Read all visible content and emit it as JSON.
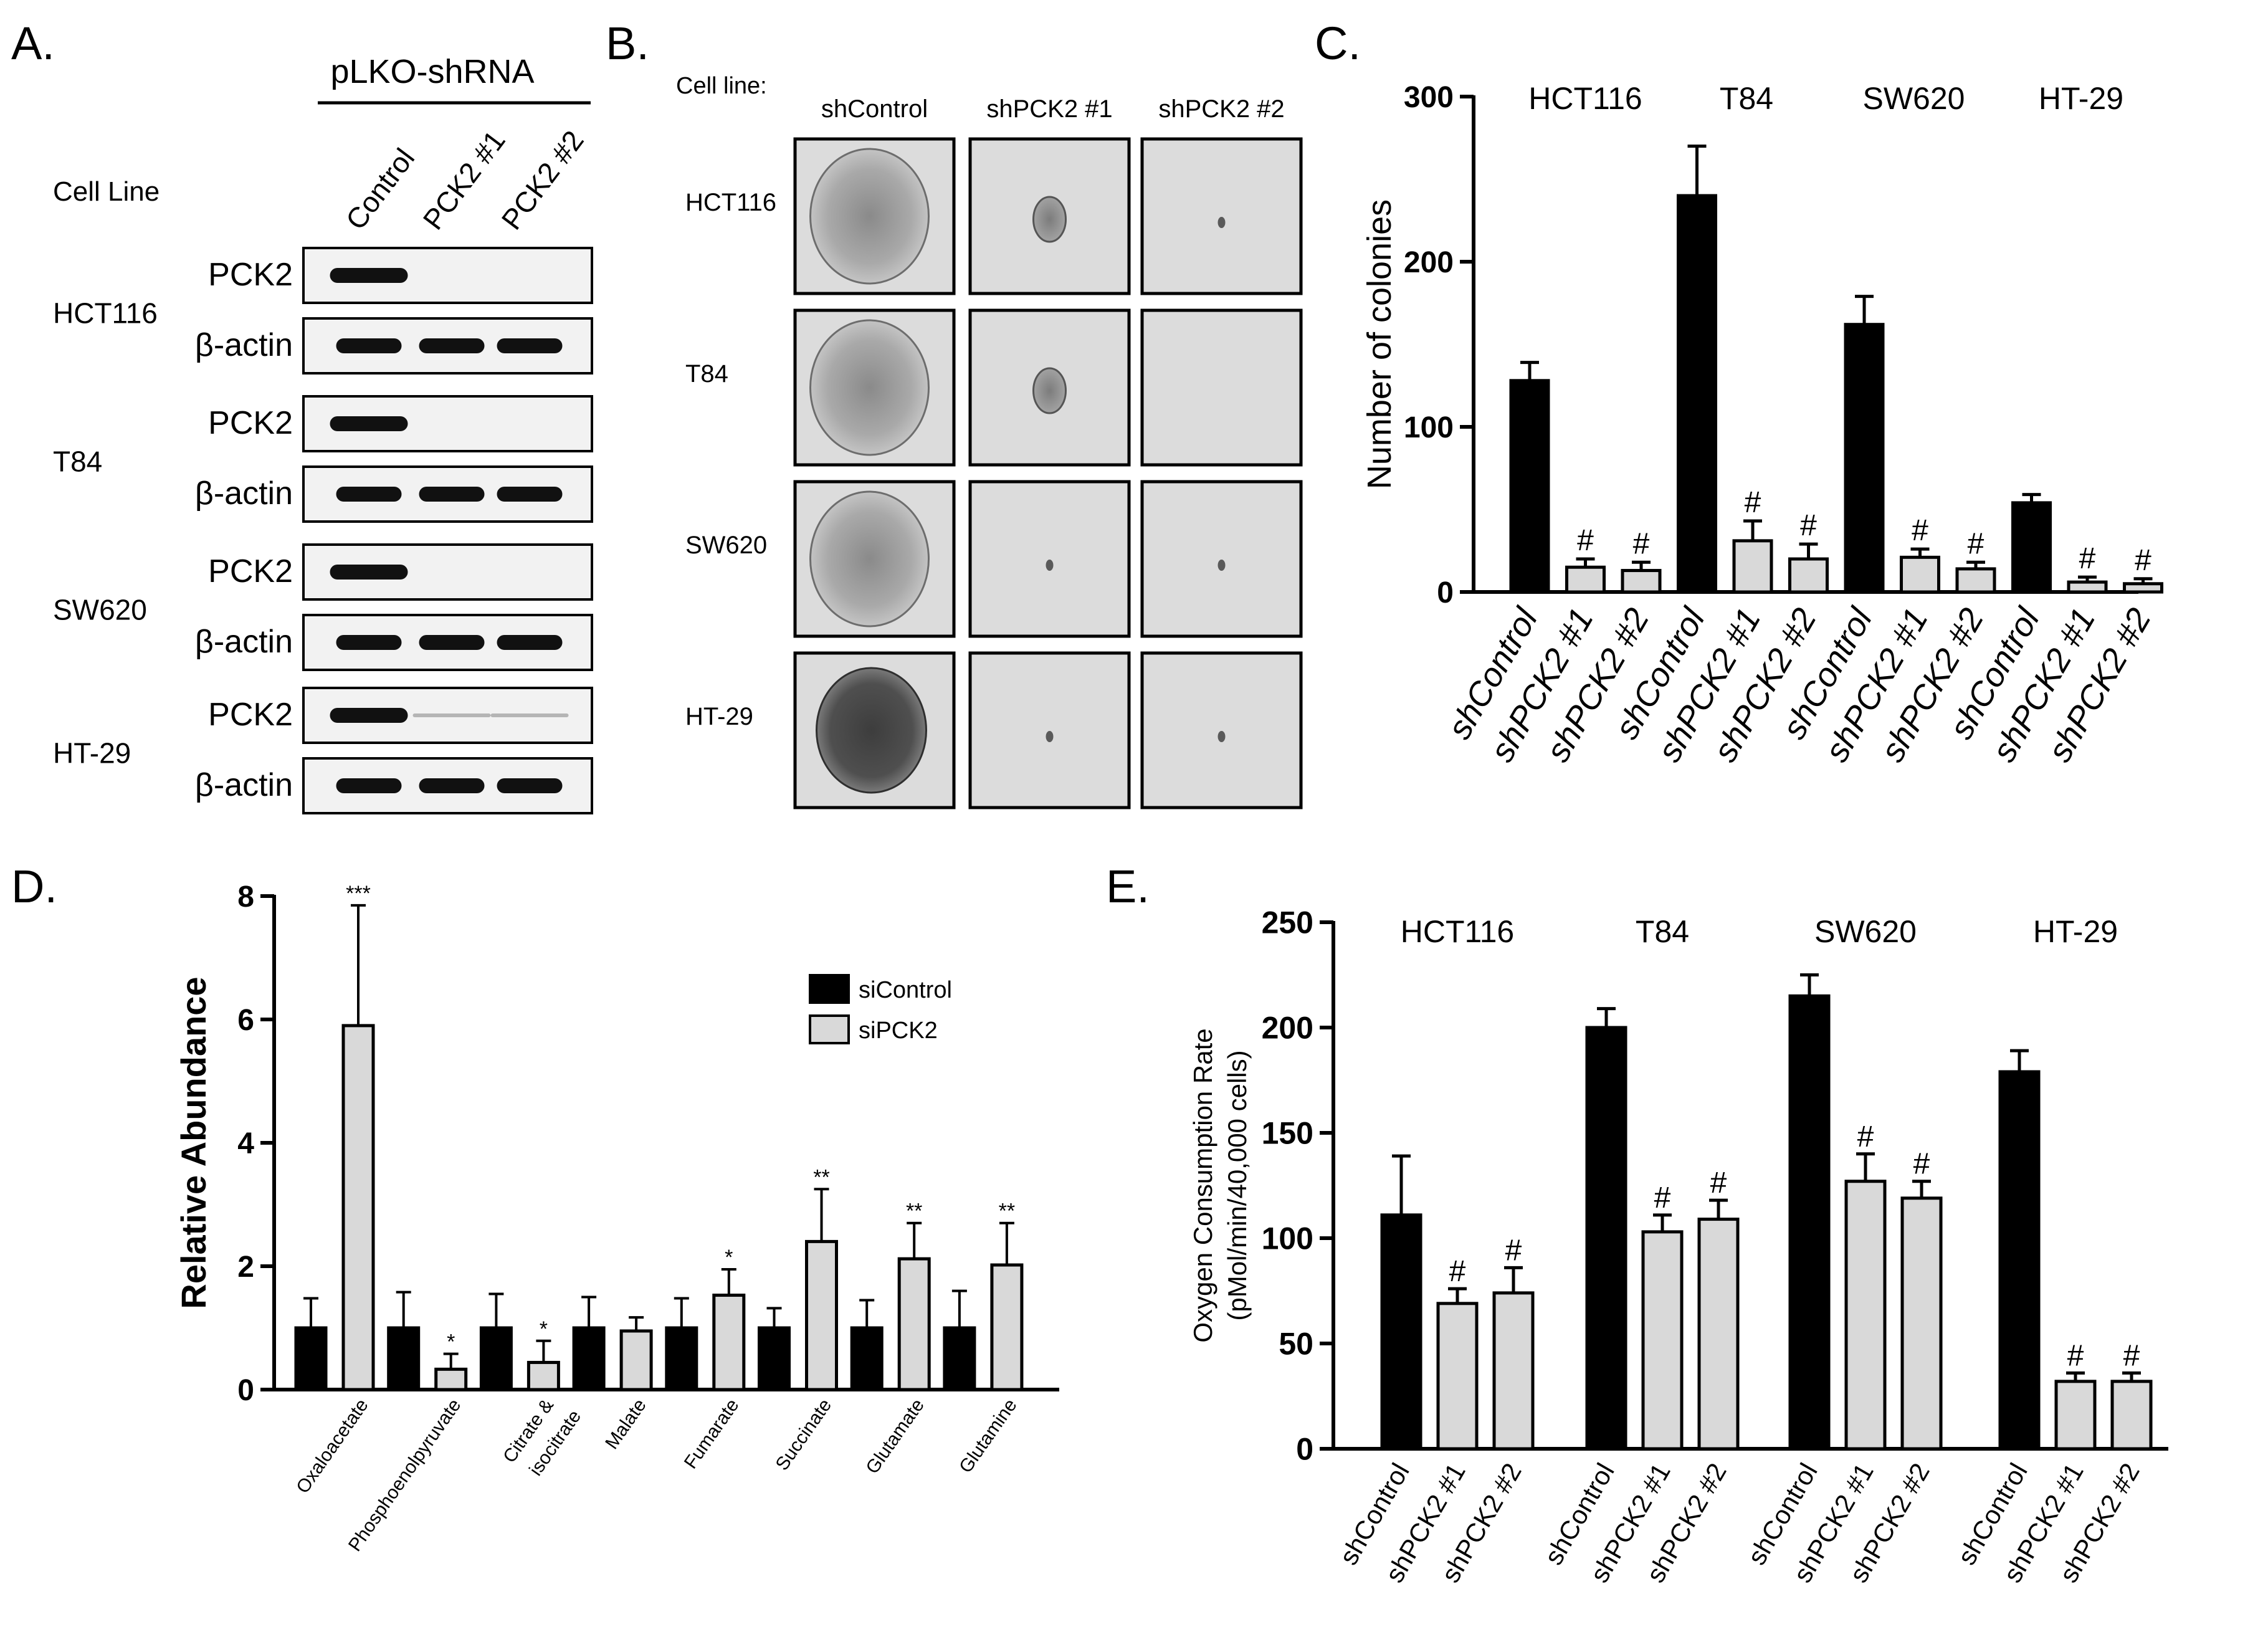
{
  "panelA": {
    "label": "A.",
    "header": "pLKO-shRNA",
    "cell_line_label": "Cell Line",
    "lanes": [
      "Control",
      "PCK2 #1",
      "PCK2 #2"
    ],
    "blots": [
      {
        "cell_line": "HCT116",
        "rows": [
          {
            "protein": "PCK2",
            "bands": [
              1,
              0,
              0
            ]
          },
          {
            "protein": "β-actin",
            "bands": [
              1,
              1,
              1
            ]
          }
        ]
      },
      {
        "cell_line": "T84",
        "rows": [
          {
            "protein": "PCK2",
            "bands": [
              1,
              0,
              0
            ]
          },
          {
            "protein": "β-actin",
            "bands": [
              1,
              1,
              1
            ]
          }
        ]
      },
      {
        "cell_line": "SW620",
        "rows": [
          {
            "protein": "PCK2",
            "bands": [
              1,
              0,
              0
            ]
          },
          {
            "protein": "β-actin",
            "bands": [
              1,
              1,
              1
            ]
          }
        ]
      },
      {
        "cell_line": "HT-29",
        "rows": [
          {
            "protein": "PCK2",
            "bands": [
              1,
              0.15,
              0.08
            ]
          },
          {
            "protein": "β-actin",
            "bands": [
              1,
              1,
              1
            ]
          }
        ]
      }
    ]
  },
  "panelB": {
    "label": "B.",
    "cell_line_label": "Cell line:",
    "columns": [
      "shControl",
      "shPCK2 #1",
      "shPCK2 #2"
    ],
    "rows": [
      {
        "cell_line": "HCT116",
        "colony": [
          "large",
          "medium",
          "tiny"
        ]
      },
      {
        "cell_line": "T84",
        "colony": [
          "large",
          "medium",
          "none"
        ]
      },
      {
        "cell_line": "SW620",
        "colony": [
          "large",
          "tiny",
          "tiny"
        ]
      },
      {
        "cell_line": "HT-29",
        "colony": [
          "large-dark",
          "tiny",
          "tiny"
        ]
      }
    ]
  },
  "chart_data": [
    {
      "id": "C",
      "label": "C.",
      "type": "bar",
      "ylabel": "Number of colonies",
      "ylim": [
        0,
        300
      ],
      "yticks": [
        0,
        100,
        200,
        300
      ],
      "groups": [
        {
          "name": "HCT116",
          "categories": [
            "shControl",
            "shPCK2 #1",
            "shPCK2 #2"
          ],
          "values": [
            128,
            15,
            13
          ],
          "errors": [
            11,
            5,
            5
          ],
          "marks": [
            "",
            "#",
            "#"
          ]
        },
        {
          "name": "T84",
          "categories": [
            "shControl",
            "shPCK2 #1",
            "shPCK2 #2"
          ],
          "values": [
            240,
            31,
            20
          ],
          "errors": [
            30,
            12,
            9
          ],
          "marks": [
            "",
            "#",
            "#"
          ]
        },
        {
          "name": "SW620",
          "categories": [
            "shControl",
            "shPCK2 #1",
            "shPCK2 #2"
          ],
          "values": [
            162,
            21,
            14
          ],
          "errors": [
            17,
            5,
            4
          ],
          "marks": [
            "",
            "#",
            "#"
          ]
        },
        {
          "name": "HT-29",
          "categories": [
            "shControl",
            "shPCK2 #1",
            "shPCK2 #2"
          ],
          "values": [
            54,
            6,
            5
          ],
          "errors": [
            5,
            3,
            3
          ],
          "marks": [
            "",
            "#",
            "#"
          ]
        }
      ],
      "colors": [
        "#000000",
        "#d9d9d9",
        "#d9d9d9"
      ]
    },
    {
      "id": "D",
      "label": "D.",
      "type": "bar",
      "ylabel": "Relative Abundance",
      "ylim": [
        0,
        8
      ],
      "yticks": [
        0,
        2,
        4,
        6,
        8
      ],
      "categories": [
        "Oxaloacetate",
        "Phosphoenolpyruvate",
        "Citrate & isocitrate",
        "Malate",
        "Fumarate",
        "Succinate",
        "Glutamate",
        "Glutamine"
      ],
      "category_lines": [
        [
          "Oxaloacetate"
        ],
        [
          "Phosphoenolpyruvate"
        ],
        [
          "Citrate &",
          "isocitrate"
        ],
        [
          "Malate"
        ],
        [
          "Fumarate"
        ],
        [
          "Succinate"
        ],
        [
          "Glutamate"
        ],
        [
          "Glutamine"
        ]
      ],
      "series": [
        {
          "name": "siControl",
          "color": "#000000",
          "values": [
            1,
            1,
            1,
            1,
            1,
            1,
            1,
            1
          ],
          "errors": [
            0.48,
            0.58,
            0.55,
            0.5,
            0.48,
            0.32,
            0.45,
            0.6
          ]
        },
        {
          "name": "siPCK2",
          "color": "#d9d9d9",
          "values": [
            5.9,
            0.33,
            0.44,
            0.95,
            1.53,
            2.4,
            2.12,
            2.02
          ],
          "errors": [
            1.95,
            0.25,
            0.35,
            0.22,
            0.42,
            0.85,
            0.58,
            0.68
          ]
        }
      ],
      "annotations": [
        "***",
        "*",
        "*",
        "",
        "*",
        "**",
        "**",
        "**"
      ],
      "legend": "top-right"
    },
    {
      "id": "E",
      "label": "E.",
      "type": "bar",
      "ylabel": "Oxygen Consumption Rate",
      "ylabel2": "(pMol/min/40,000 cells)",
      "ylim": [
        0,
        250
      ],
      "yticks": [
        0,
        50,
        100,
        150,
        200,
        250
      ],
      "groups": [
        {
          "name": "HCT116",
          "categories": [
            "shControl",
            "shPCK2 #1",
            "shPCK2 #2"
          ],
          "values": [
            111,
            69,
            74
          ],
          "errors": [
            28,
            7,
            12
          ],
          "marks": [
            "",
            "#",
            "#"
          ]
        },
        {
          "name": "T84",
          "categories": [
            "shControl",
            "shPCK2 #1",
            "shPCK2 #2"
          ],
          "values": [
            200,
            103,
            109
          ],
          "errors": [
            9,
            8,
            9
          ],
          "marks": [
            "",
            "#",
            "#"
          ]
        },
        {
          "name": "SW620",
          "categories": [
            "shControl",
            "shPCK2 #1",
            "shPCK2 #2"
          ],
          "values": [
            215,
            127,
            119
          ],
          "errors": [
            10,
            13,
            8
          ],
          "marks": [
            "",
            "#",
            "#"
          ]
        },
        {
          "name": "HT-29",
          "categories": [
            "shControl",
            "shPCK2 #1",
            "shPCK2 #2"
          ],
          "values": [
            179,
            32,
            32
          ],
          "errors": [
            10,
            4,
            4
          ],
          "marks": [
            "",
            "#",
            "#"
          ]
        }
      ],
      "colors": [
        "#000000",
        "#d9d9d9",
        "#d9d9d9"
      ]
    }
  ]
}
